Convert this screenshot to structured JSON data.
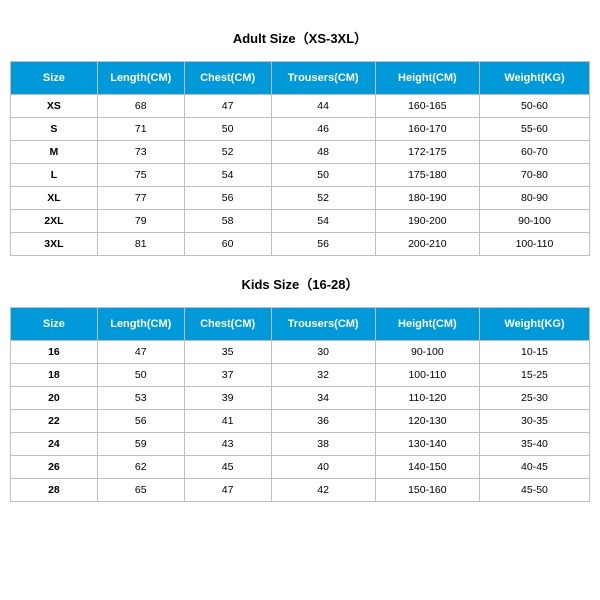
{
  "adult": {
    "title": "Adult Size（XS-3XL）",
    "columns": [
      "Size",
      "Length(CM)",
      "Chest(CM)",
      "Trousers(CM)",
      "Height(CM)",
      "Weight(KG)"
    ],
    "rows": [
      [
        "XS",
        "68",
        "47",
        "44",
        "160-165",
        "50-60"
      ],
      [
        "S",
        "71",
        "50",
        "46",
        "160-170",
        "55-60"
      ],
      [
        "M",
        "73",
        "52",
        "48",
        "172-175",
        "60-70"
      ],
      [
        "L",
        "75",
        "54",
        "50",
        "175-180",
        "70-80"
      ],
      [
        "XL",
        "77",
        "56",
        "52",
        "180-190",
        "80-90"
      ],
      [
        "2XL",
        "79",
        "58",
        "54",
        "190-200",
        "90-100"
      ],
      [
        "3XL",
        "81",
        "60",
        "56",
        "200-210",
        "100-110"
      ]
    ]
  },
  "kids": {
    "title": "Kids Size（16-28）",
    "columns": [
      "Size",
      "Length(CM)",
      "Chest(CM)",
      "Trousers(CM)",
      "Height(CM)",
      "Weight(KG)"
    ],
    "rows": [
      [
        "16",
        "47",
        "35",
        "30",
        "90-100",
        "10-15"
      ],
      [
        "18",
        "50",
        "37",
        "32",
        "100-110",
        "15-25"
      ],
      [
        "20",
        "53",
        "39",
        "34",
        "110-120",
        "25-30"
      ],
      [
        "22",
        "56",
        "41",
        "36",
        "120-130",
        "30-35"
      ],
      [
        "24",
        "59",
        "43",
        "38",
        "130-140",
        "35-40"
      ],
      [
        "26",
        "62",
        "45",
        "40",
        "140-150",
        "40-45"
      ],
      [
        "28",
        "65",
        "47",
        "42",
        "150-160",
        "45-50"
      ]
    ]
  },
  "style": {
    "header_bg": "#0099d9",
    "header_fg": "#ffffff",
    "border_color": "#bfbfbf",
    "bg": "#ffffff",
    "title_fontsize": 13,
    "header_fontsize": 11,
    "cell_fontsize": 10.5,
    "col_widths_pct": [
      15,
      15,
      15,
      18,
      18,
      19
    ]
  }
}
